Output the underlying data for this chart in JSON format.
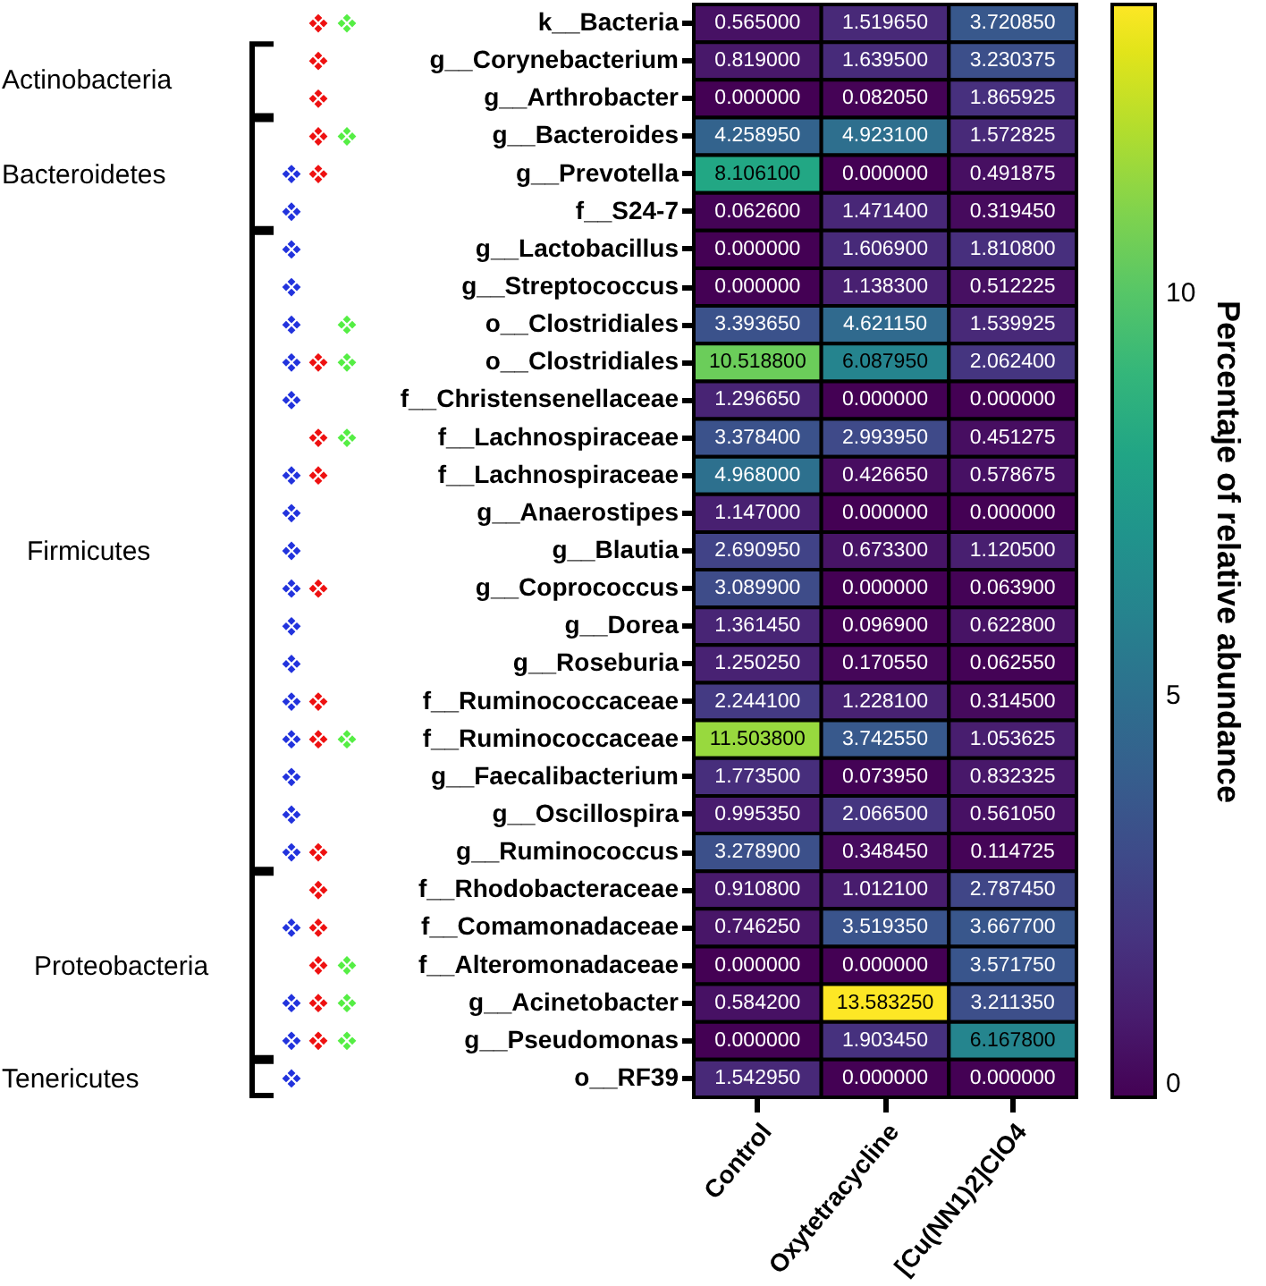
{
  "chart_data": {
    "type": "heatmap",
    "categories": [
      "Control",
      "Oxytetracycline",
      "[Cu(NN1)2]ClO4"
    ],
    "y_categories": [
      "k__Bacteria",
      "g__Corynebacterium",
      "g__Arthrobacter",
      "g__Bacteroides",
      "g__Prevotella",
      "f__S24-7",
      "g__Lactobacillus",
      "g__Streptococcus",
      "o__Clostridiales",
      "o__Clostridiales",
      "f__Christensenellaceae",
      "f__Lachnospiraceae",
      "f__Lachnospiraceae",
      "g__Anaerostipes",
      "g__Blautia",
      "g__Coprococcus",
      "g__Dorea",
      "g__Roseburia",
      "f__Ruminococcaceae",
      "f__Ruminococcaceae",
      "g__Faecalibacterium",
      "g__Oscillospira",
      "g__Ruminococcus",
      "f__Rhodobacteraceae",
      "f__Comamonadaceae",
      "f__Alteromonadaceae",
      "g__Acinetobacter",
      "g__Pseudomonas",
      "o__RF39"
    ],
    "cells": [
      [
        0.565,
        1.51965,
        3.72085
      ],
      [
        0.819,
        1.6395,
        3.230375
      ],
      [
        0.0,
        0.08205,
        1.865925
      ],
      [
        4.25895,
        4.9231,
        1.572825
      ],
      [
        8.1061,
        0.0,
        0.491875
      ],
      [
        0.0626,
        1.4714,
        0.31945
      ],
      [
        0.0,
        1.6069,
        1.8108
      ],
      [
        0.0,
        1.1383,
        0.512225
      ],
      [
        3.39365,
        4.62115,
        1.539925
      ],
      [
        10.5188,
        6.08795,
        2.0624
      ],
      [
        1.29665,
        0.0,
        0.0
      ],
      [
        3.3784,
        2.99395,
        0.451275
      ],
      [
        4.968,
        0.42665,
        0.578675
      ],
      [
        1.147,
        0.0,
        0.0
      ],
      [
        2.69095,
        0.6733,
        1.1205
      ],
      [
        3.0899,
        0.0,
        0.0639
      ],
      [
        1.36145,
        0.0969,
        0.6228
      ],
      [
        1.25025,
        0.17055,
        0.06255
      ],
      [
        2.2441,
        1.2281,
        0.3145
      ],
      [
        11.5038,
        3.74255,
        1.053625
      ],
      [
        1.7735,
        0.07395,
        0.832325
      ],
      [
        0.99535,
        2.0665,
        0.56105
      ],
      [
        3.2789,
        0.34845,
        0.114725
      ],
      [
        0.9108,
        1.0121,
        2.78745
      ],
      [
        0.74625,
        3.51935,
        3.6677
      ],
      [
        0.0,
        0.0,
        3.57175
      ],
      [
        0.5842,
        13.58325,
        3.21135
      ],
      [
        0.0,
        1.90345,
        6.1678
      ],
      [
        1.54295,
        0.0,
        0.0
      ]
    ],
    "cell_labels": [
      [
        "0.565000",
        "1.519650",
        "3.720850"
      ],
      [
        "0.819000",
        "1.639500",
        "3.230375"
      ],
      [
        "0.000000",
        "0.082050",
        "1.865925"
      ],
      [
        "4.258950",
        "4.923100",
        "1.572825"
      ],
      [
        "8.106100",
        "0.000000",
        "0.491875"
      ],
      [
        "0.062600",
        "1.471400",
        "0.319450"
      ],
      [
        "0.000000",
        "1.606900",
        "1.810800"
      ],
      [
        "0.000000",
        "1.138300",
        "0.512225"
      ],
      [
        "3.393650",
        "4.621150",
        "1.539925"
      ],
      [
        "10.518800",
        "6.087950",
        "2.062400"
      ],
      [
        "1.296650",
        "0.000000",
        "0.000000"
      ],
      [
        "3.378400",
        "2.993950",
        "0.451275"
      ],
      [
        "4.968000",
        "0.426650",
        "0.578675"
      ],
      [
        "1.147000",
        "0.000000",
        "0.000000"
      ],
      [
        "2.690950",
        "0.673300",
        "1.120500"
      ],
      [
        "3.089900",
        "0.000000",
        "0.063900"
      ],
      [
        "1.361450",
        "0.096900",
        "0.622800"
      ],
      [
        "1.250250",
        "0.170550",
        "0.062550"
      ],
      [
        "2.244100",
        "1.228100",
        "0.314500"
      ],
      [
        "11.503800",
        "3.742550",
        "1.053625"
      ],
      [
        "1.773500",
        "0.073950",
        "0.832325"
      ],
      [
        "0.995350",
        "2.066500",
        "0.561050"
      ],
      [
        "3.278900",
        "0.348450",
        "0.114725"
      ],
      [
        "0.910800",
        "1.012100",
        "2.787450"
      ],
      [
        "0.746250",
        "3.519350",
        "3.667700"
      ],
      [
        "0.000000",
        "0.000000",
        "3.571750"
      ],
      [
        "0.584200",
        "13.583250",
        "3.211350"
      ],
      [
        "0.000000",
        "1.903450",
        "6.167800"
      ],
      [
        "1.542950",
        "0.000000",
        "0.000000"
      ]
    ],
    "clim": [
      0,
      13.58325
    ],
    "cticks": [
      0,
      5,
      10
    ],
    "clabel": "Percentaje of relative abundance",
    "annotations": [
      "Actinobacteria",
      "Bacteroidetes",
      "Firmicutes",
      "Proteobacteria",
      "Tenericutes"
    ]
  }
}
